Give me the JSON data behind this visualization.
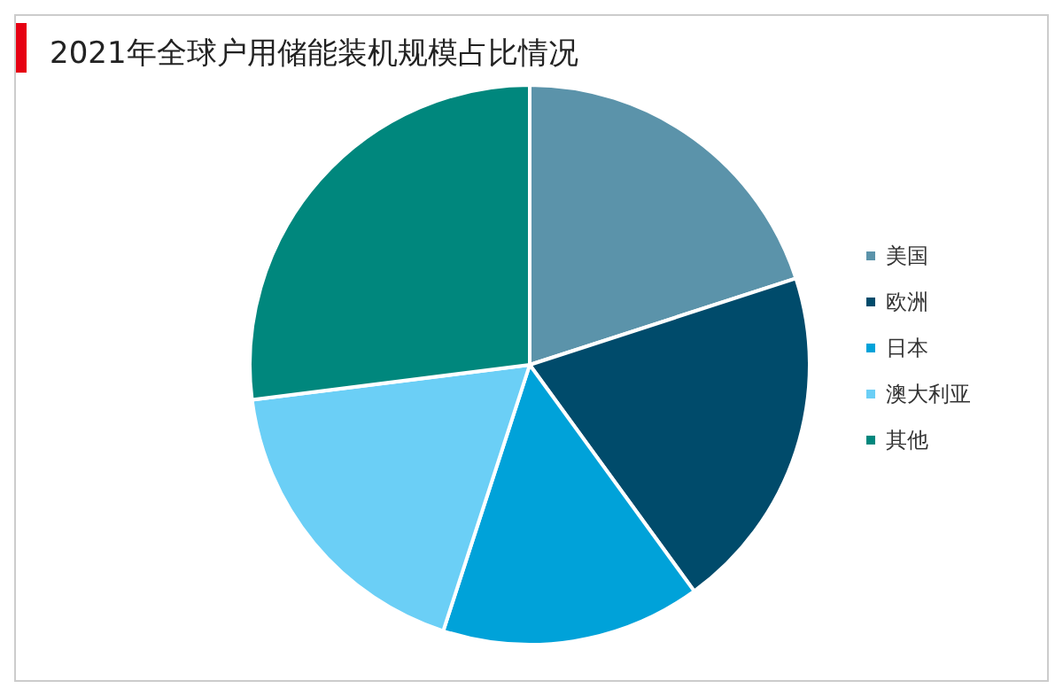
{
  "chart_data": {
    "type": "pie",
    "title": "2021年全球户用储能装机规模占比情况",
    "categories": [
      "美国",
      "欧洲",
      "日本",
      "澳大利亚",
      "其他"
    ],
    "values": [
      20,
      20,
      15,
      18,
      27
    ],
    "colors": [
      "#5b93aa",
      "#004b6b",
      "#00a2d9",
      "#6bcff6",
      "#00877d"
    ],
    "legend": "right"
  }
}
